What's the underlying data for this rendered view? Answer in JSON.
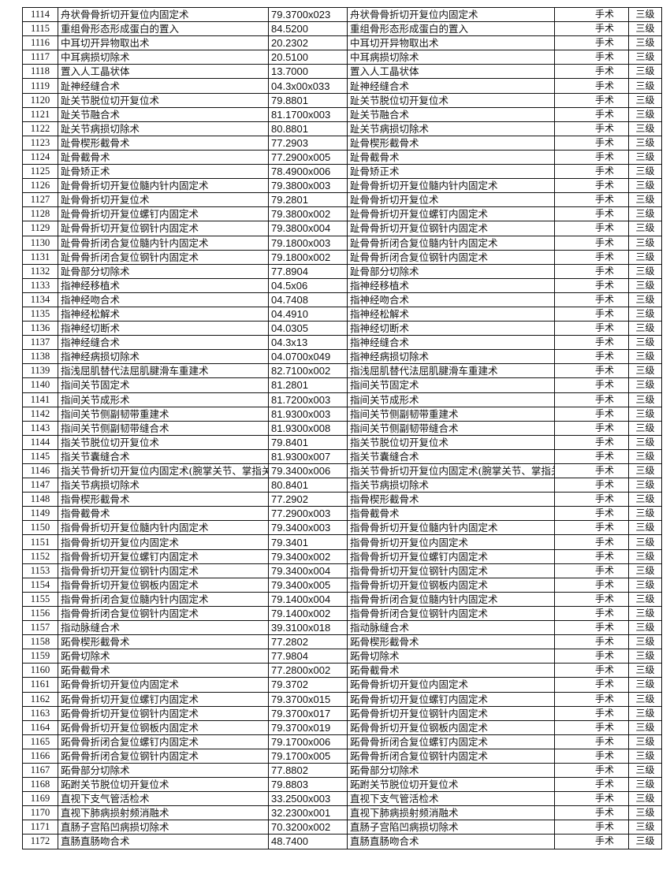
{
  "table": {
    "rows": [
      [
        "1114",
        "舟状骨骨折切开复位内固定术",
        "79.3700x023",
        "舟状骨骨折切开复位内固定术",
        "手术",
        "三级"
      ],
      [
        "1115",
        "重组骨形态形成蛋白的置入",
        "84.5200",
        "重组骨形态形成蛋白的置入",
        "手术",
        "三级"
      ],
      [
        "1116",
        "中耳切开异物取出术",
        "20.2302",
        "中耳切开异物取出术",
        "手术",
        "三级"
      ],
      [
        "1117",
        "中耳病损切除术",
        "20.5100",
        "中耳病损切除术",
        "手术",
        "三级"
      ],
      [
        "1118",
        "置入人工晶状体",
        "13.7000",
        "置入人工晶状体",
        "手术",
        "三级"
      ],
      [
        "1119",
        "趾神经缝合术",
        "04.3x00x033",
        "趾神经缝合术",
        "手术",
        "三级"
      ],
      [
        "1120",
        "趾关节脱位切开复位术",
        "79.8801",
        "趾关节脱位切开复位术",
        "手术",
        "三级"
      ],
      [
        "1121",
        "趾关节融合术",
        "81.1700x003",
        "趾关节融合术",
        "手术",
        "三级"
      ],
      [
        "1122",
        "趾关节病损切除术",
        "80.8801",
        "趾关节病损切除术",
        "手术",
        "三级"
      ],
      [
        "1123",
        "趾骨楔形截骨术",
        "77.2903",
        "趾骨楔形截骨术",
        "手术",
        "三级"
      ],
      [
        "1124",
        "趾骨截骨术",
        "77.2900x005",
        "趾骨截骨术",
        "手术",
        "三级"
      ],
      [
        "1125",
        "趾骨矫正术",
        "78.4900x006",
        "趾骨矫正术",
        "手术",
        "三级"
      ],
      [
        "1126",
        "趾骨骨折切开复位髓内针内固定术",
        "79.3800x003",
        "趾骨骨折切开复位髓内针内固定术",
        "手术",
        "三级"
      ],
      [
        "1127",
        "趾骨骨折切开复位术",
        "79.2801",
        "趾骨骨折切开复位术",
        "手术",
        "三级"
      ],
      [
        "1128",
        "趾骨骨折切开复位螺钉内固定术",
        "79.3800x002",
        "趾骨骨折切开复位螺钉内固定术",
        "手术",
        "三级"
      ],
      [
        "1129",
        "趾骨骨折切开复位钢针内固定术",
        "79.3800x004",
        "趾骨骨折切开复位钢针内固定术",
        "手术",
        "三级"
      ],
      [
        "1130",
        "趾骨骨折闭合复位髓内针内固定术",
        "79.1800x003",
        "趾骨骨折闭合复位髓内针内固定术",
        "手术",
        "三级"
      ],
      [
        "1131",
        "趾骨骨折闭合复位钢针内固定术",
        "79.1800x002",
        "趾骨骨折闭合复位钢针内固定术",
        "手术",
        "三级"
      ],
      [
        "1132",
        "趾骨部分切除术",
        "77.8904",
        "趾骨部分切除术",
        "手术",
        "三级"
      ],
      [
        "1133",
        "指神经移植术",
        "04.5x06",
        "指神经移植术",
        "手术",
        "三级"
      ],
      [
        "1134",
        "指神经吻合术",
        "04.7408",
        "指神经吻合术",
        "手术",
        "三级"
      ],
      [
        "1135",
        "指神经松解术",
        "04.4910",
        "指神经松解术",
        "手术",
        "三级"
      ],
      [
        "1136",
        "指神经切断术",
        "04.0305",
        "指神经切断术",
        "手术",
        "三级"
      ],
      [
        "1137",
        "指神经缝合术",
        "04.3x13",
        "指神经缝合术",
        "手术",
        "三级"
      ],
      [
        "1138",
        "指神经病损切除术",
        "04.0700x049",
        "指神经病损切除术",
        "手术",
        "三级"
      ],
      [
        "1139",
        "指浅屈肌替代法屈肌腱滑车重建术",
        "82.7100x002",
        "指浅屈肌替代法屈肌腱滑车重建术",
        "手术",
        "三级"
      ],
      [
        "1140",
        "指间关节固定术",
        "81.2801",
        "指间关节固定术",
        "手术",
        "三级"
      ],
      [
        "1141",
        "指间关节成形术",
        "81.7200x003",
        "指间关节成形术",
        "手术",
        "三级"
      ],
      [
        "1142",
        "指间关节侧副韧带重建术",
        "81.9300x003",
        "指间关节侧副韧带重建术",
        "手术",
        "三级"
      ],
      [
        "1143",
        "指间关节侧副韧带缝合术",
        "81.9300x008",
        "指间关节侧副韧带缝合术",
        "手术",
        "三级"
      ],
      [
        "1144",
        "指关节脱位切开复位术",
        "79.8401",
        "指关节脱位切开复位术",
        "手术",
        "三级"
      ],
      [
        "1145",
        "指关节囊缝合术",
        "81.9300x007",
        "指关节囊缝合术",
        "手术",
        "三级"
      ],
      [
        "1146",
        "指关节骨折切开复位内固定术(腕掌关节、掌指关",
        "79.3400x006",
        "指关节骨折切开复位内固定术(腕掌关节、掌指关",
        "手术",
        "三级"
      ],
      [
        "1147",
        "指关节病损切除术",
        "80.8401",
        "指关节病损切除术",
        "手术",
        "三级"
      ],
      [
        "1148",
        "指骨楔形截骨术",
        "77.2902",
        "指骨楔形截骨术",
        "手术",
        "三级"
      ],
      [
        "1149",
        "指骨截骨术",
        "77.2900x003",
        "指骨截骨术",
        "手术",
        "三级"
      ],
      [
        "1150",
        "指骨骨折切开复位髓内针内固定术",
        "79.3400x003",
        "指骨骨折切开复位髓内针内固定术",
        "手术",
        "三级"
      ],
      [
        "1151",
        "指骨骨折切开复位内固定术",
        "79.3401",
        "指骨骨折切开复位内固定术",
        "手术",
        "三级"
      ],
      [
        "1152",
        "指骨骨折切开复位螺钉内固定术",
        "79.3400x002",
        "指骨骨折切开复位螺钉内固定术",
        "手术",
        "三级"
      ],
      [
        "1153",
        "指骨骨折切开复位钢针内固定术",
        "79.3400x004",
        "指骨骨折切开复位钢针内固定术",
        "手术",
        "三级"
      ],
      [
        "1154",
        "指骨骨折切开复位钢板内固定术",
        "79.3400x005",
        "指骨骨折切开复位钢板内固定术",
        "手术",
        "三级"
      ],
      [
        "1155",
        "指骨骨折闭合复位髓内针内固定术",
        "79.1400x004",
        "指骨骨折闭合复位髓内针内固定术",
        "手术",
        "三级"
      ],
      [
        "1156",
        "指骨骨折闭合复位钢针内固定术",
        "79.1400x002",
        "指骨骨折闭合复位钢针内固定术",
        "手术",
        "三级"
      ],
      [
        "1157",
        "指动脉缝合术",
        "39.3100x018",
        "指动脉缝合术",
        "手术",
        "三级"
      ],
      [
        "1158",
        "跖骨楔形截骨术",
        "77.2802",
        "跖骨楔形截骨术",
        "手术",
        "三级"
      ],
      [
        "1159",
        "跖骨切除术",
        "77.9804",
        "跖骨切除术",
        "手术",
        "三级"
      ],
      [
        "1160",
        "跖骨截骨术",
        "77.2800x002",
        "跖骨截骨术",
        "手术",
        "三级"
      ],
      [
        "1161",
        "跖骨骨折切开复位内固定术",
        "79.3702",
        "跖骨骨折切开复位内固定术",
        "手术",
        "三级"
      ],
      [
        "1162",
        "跖骨骨折切开复位螺钉内固定术",
        "79.3700x015",
        "跖骨骨折切开复位螺钉内固定术",
        "手术",
        "三级"
      ],
      [
        "1163",
        "跖骨骨折切开复位钢针内固定术",
        "79.3700x017",
        "跖骨骨折切开复位钢针内固定术",
        "手术",
        "三级"
      ],
      [
        "1164",
        "跖骨骨折切开复位钢板内固定术",
        "79.3700x019",
        "跖骨骨折切开复位钢板内固定术",
        "手术",
        "三级"
      ],
      [
        "1165",
        "跖骨骨折闭合复位螺钉内固定术",
        "79.1700x006",
        "跖骨骨折闭合复位螺钉内固定术",
        "手术",
        "三级"
      ],
      [
        "1166",
        "跖骨骨折闭合复位钢针内固定术",
        "79.1700x005",
        "跖骨骨折闭合复位钢针内固定术",
        "手术",
        "三级"
      ],
      [
        "1167",
        "跖骨部分切除术",
        "77.8802",
        "跖骨部分切除术",
        "手术",
        "三级"
      ],
      [
        "1168",
        "跖跗关节脱位切开复位术",
        "79.8803",
        "跖跗关节脱位切开复位术",
        "手术",
        "三级"
      ],
      [
        "1169",
        "直视下支气管活检术",
        "33.2500x003",
        "直视下支气管活检术",
        "手术",
        "三级"
      ],
      [
        "1170",
        "直视下肺病损射频消融术",
        "32.2300x001",
        "直视下肺病损射频消融术",
        "手术",
        "三级"
      ],
      [
        "1171",
        "直肠子宫陷凹病损切除术",
        "70.3200x002",
        "直肠子宫陷凹病损切除术",
        "手术",
        "三级"
      ],
      [
        "1172",
        "直肠直肠吻合术",
        "48.7400",
        "直肠直肠吻合术",
        "手术",
        "三级"
      ]
    ]
  }
}
